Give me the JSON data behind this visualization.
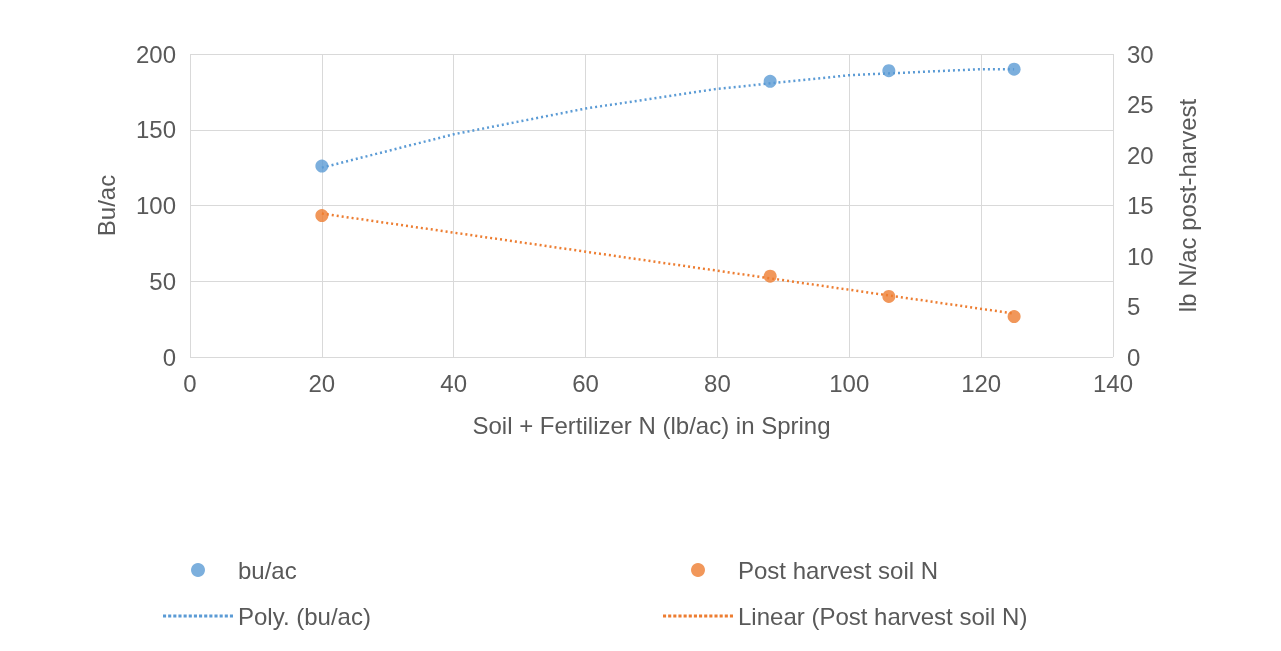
{
  "chart_data": {
    "type": "scatter",
    "xlabel": "Soil + Fertilizer N (lb/ac) in Spring",
    "ylabel": "Bu/ac",
    "y2label": "lb N/ac post-harvest",
    "series": [
      {
        "name": "bu/ac",
        "color": "#5b9bd5",
        "x": [
          20,
          88,
          106,
          125
        ],
        "values": [
          126,
          182,
          189,
          190
        ]
      },
      {
        "name": "Post harvest soil N",
        "color": "#ed7d31",
        "axis": "y2",
        "x": [
          20,
          88,
          106,
          125
        ],
        "values": [
          14,
          8,
          6,
          4
        ]
      },
      {
        "name": "Poly. (bu/ac)",
        "type": "line",
        "color": "#5b9bd5",
        "line_style": "dotted",
        "marker": "none",
        "x": [
          20,
          40,
          60,
          80,
          100,
          120,
          125
        ],
        "values": [
          125,
          147,
          164,
          177,
          186,
          190,
          190
        ]
      },
      {
        "name": "Linear (Post harvest soil N)",
        "type": "line",
        "color": "#ed7d31",
        "line_style": "dotted",
        "marker": "none",
        "axis": "y2",
        "x": [
          20,
          125
        ],
        "values": [
          14.2,
          4.3
        ]
      }
    ],
    "xlim": [
      0,
      140
    ],
    "xticks": [
      0,
      20,
      40,
      60,
      80,
      100,
      120,
      140
    ],
    "ylim": [
      0,
      200
    ],
    "yticks": [
      0,
      50,
      100,
      150,
      200
    ],
    "y2lim": [
      0,
      30
    ],
    "y2ticks": [
      0,
      5,
      10,
      15,
      20,
      25,
      30
    ],
    "grid": true,
    "legend": "bottom",
    "marker": "circle"
  }
}
